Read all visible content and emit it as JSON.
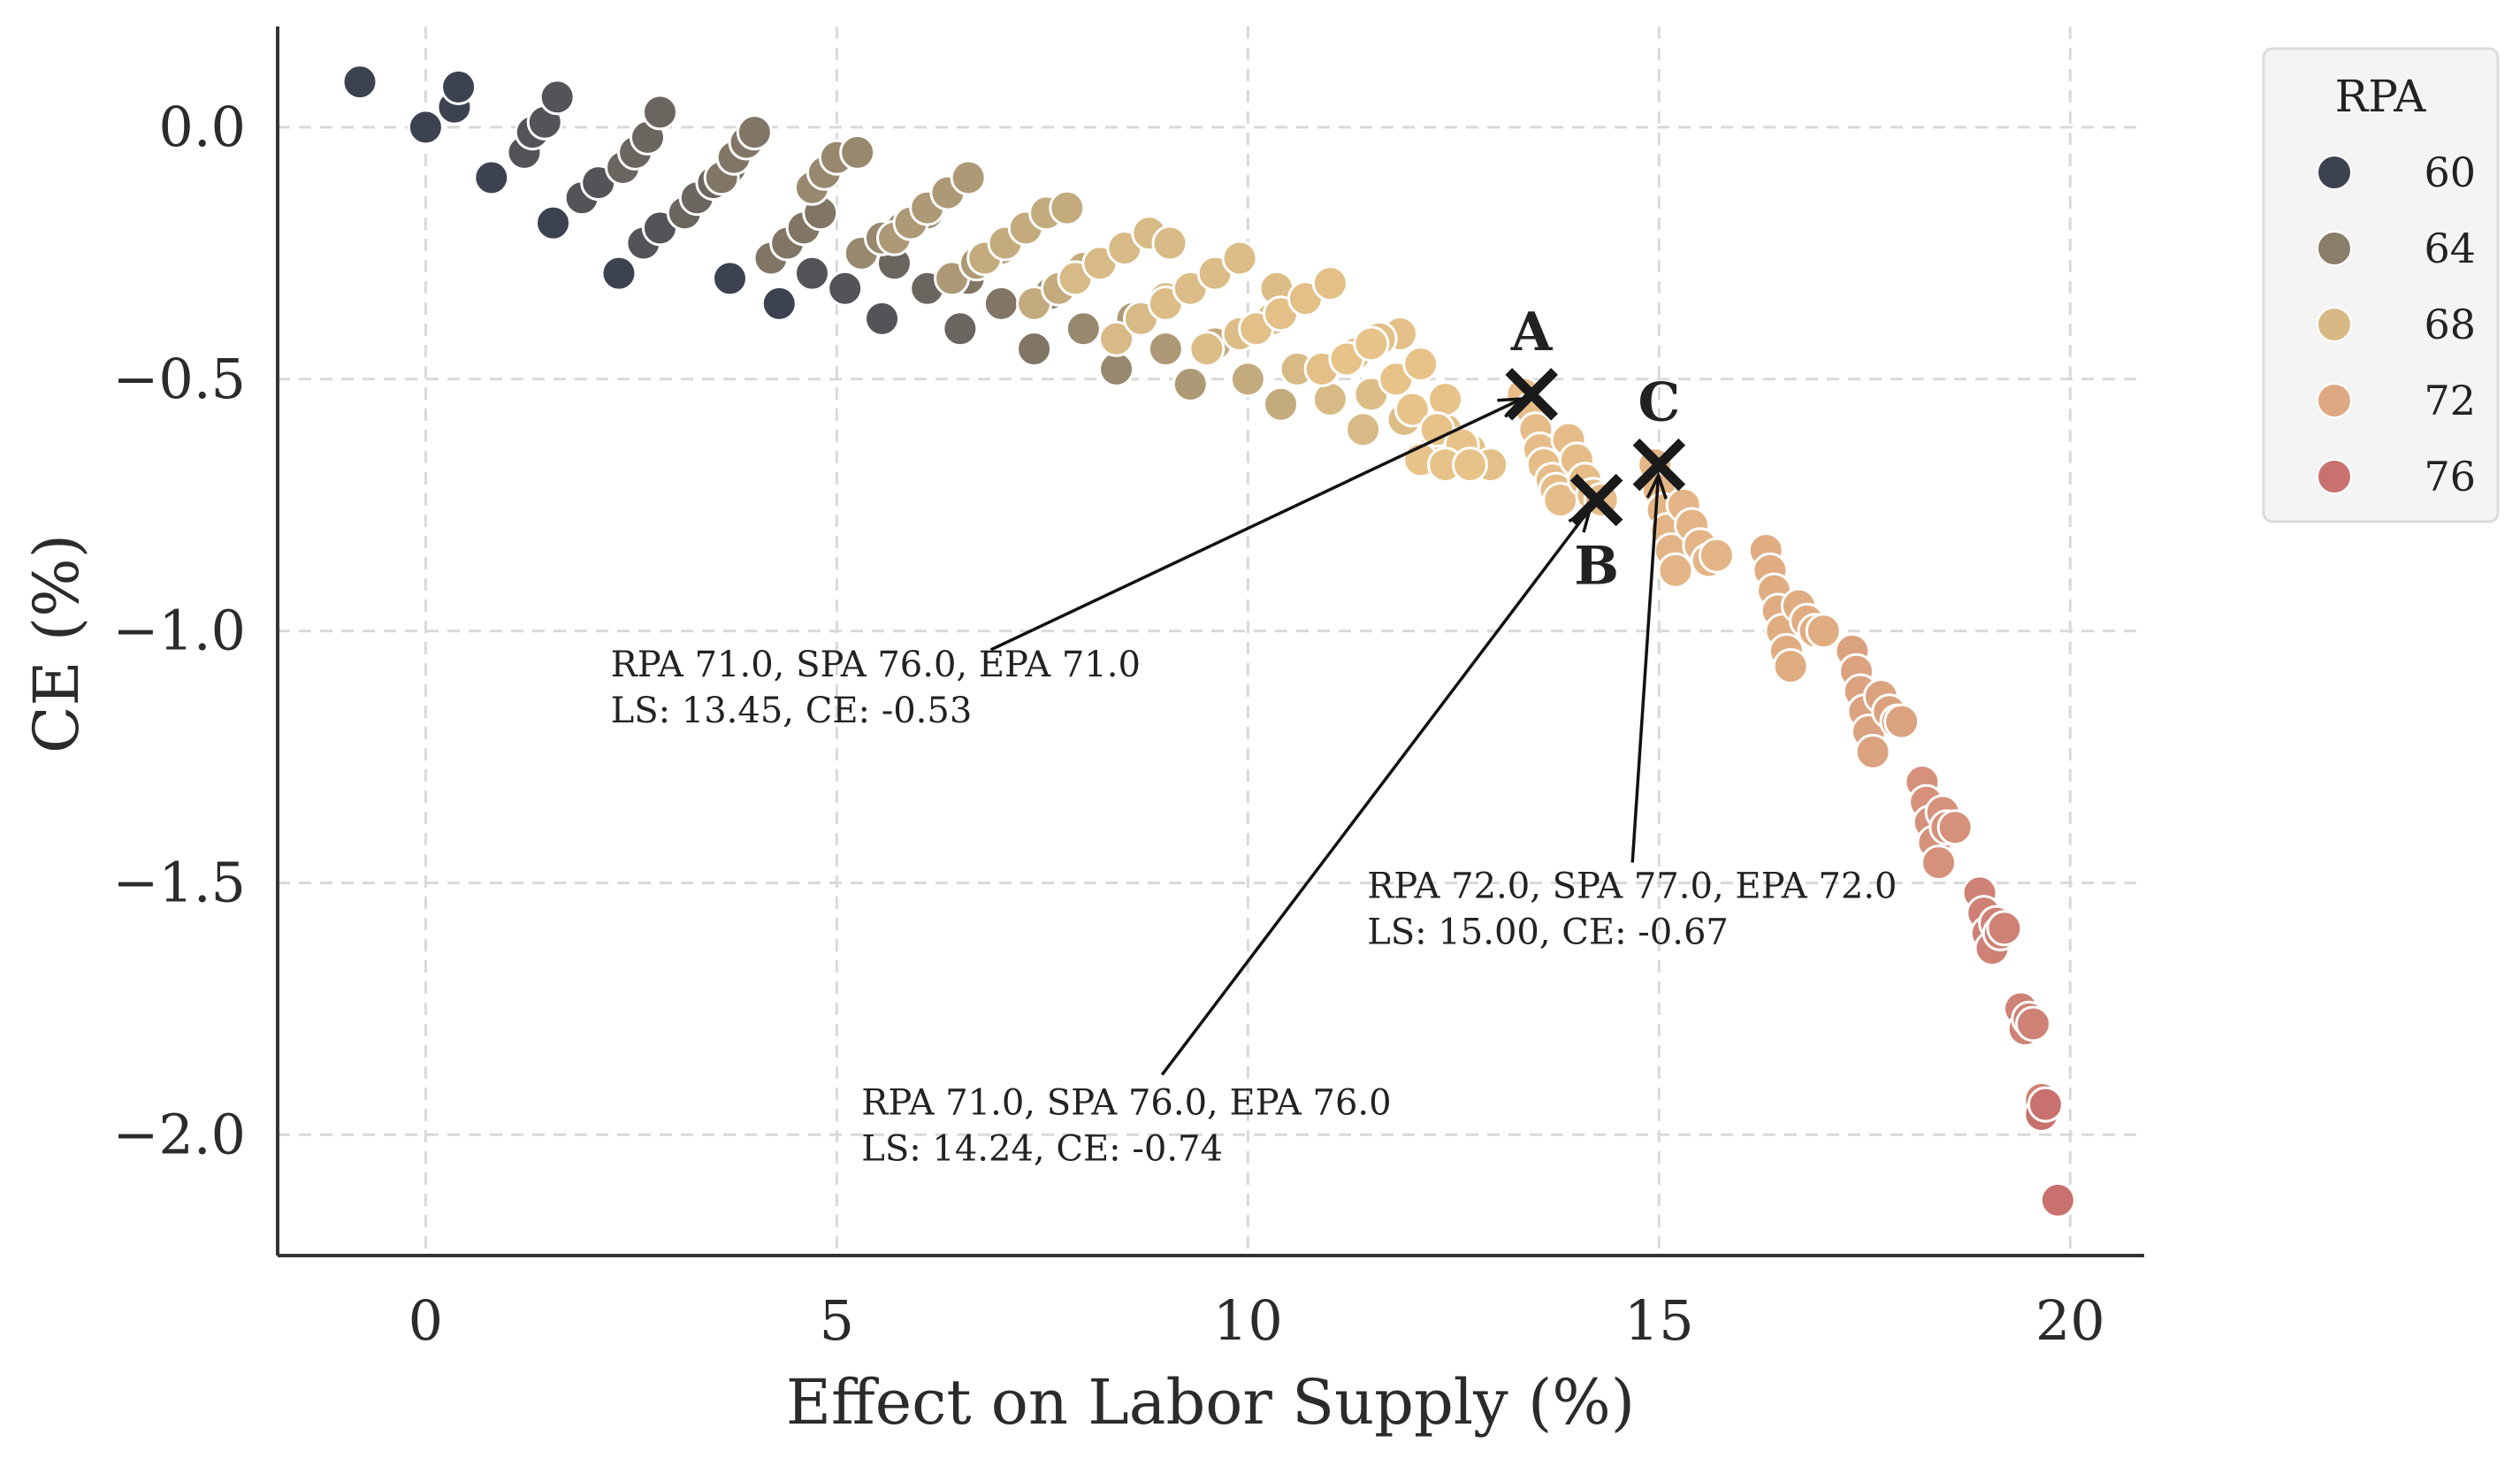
{
  "chart_data": {
    "type": "scatter",
    "xlabel": "Effect on Labor Supply (%)",
    "ylabel": "CE (%)",
    "xlim": [
      -1.8,
      20.9
    ],
    "ylim": [
      -2.24,
      0.2
    ],
    "xticks": [
      0,
      5,
      10,
      15,
      20
    ],
    "xtick_labels": [
      "0",
      "5",
      "10",
      "15",
      "20"
    ],
    "yticks": [
      0.0,
      -0.5,
      -1.0,
      -1.5,
      -2.0
    ],
    "ytick_labels": [
      "0.0",
      "−0.5",
      "−1.0",
      "−1.5",
      "−2.0"
    ],
    "grid": true,
    "legend": {
      "title": "RPA",
      "placement": "upper-right-outside",
      "entries": [
        {
          "label": "60",
          "color": "#3d4251"
        },
        {
          "label": "64",
          "color": "#8a7d69"
        },
        {
          "label": "68",
          "color": "#d6b985"
        },
        {
          "label": "72",
          "color": "#dea882"
        },
        {
          "label": "76",
          "color": "#c8716f"
        }
      ]
    },
    "colors": {
      "rpa_min": 60,
      "rpa_max": 77,
      "scale": [
        "#3d4251",
        "#8a7d69",
        "#d6b985",
        "#e8c48a",
        "#dea882",
        "#c8716f"
      ]
    },
    "series": [
      {
        "rpa": 60,
        "x": [
          -0.8,
          0.0,
          0.35,
          0.4,
          0.8,
          1.55,
          2.35,
          3.7,
          4.3
        ],
        "y": [
          0.09,
          0.0,
          0.04,
          0.08,
          -0.1,
          -0.19,
          -0.29,
          -0.3,
          -0.35
        ]
      },
      {
        "rpa": 61,
        "x": [
          1.2,
          1.3,
          1.45,
          1.6,
          1.9,
          2.1,
          2.65,
          2.85,
          4.7,
          5.1,
          5.55
        ],
        "y": [
          -0.05,
          -0.01,
          0.01,
          0.06,
          -0.14,
          -0.11,
          -0.23,
          -0.2,
          -0.29,
          -0.32,
          -0.38
        ]
      },
      {
        "rpa": 62,
        "x": [
          2.4,
          2.55,
          2.7,
          2.85,
          3.15,
          3.3,
          3.5,
          3.7,
          5.7,
          6.1,
          6.5
        ],
        "y": [
          -0.08,
          -0.05,
          -0.02,
          0.03,
          -0.17,
          -0.14,
          -0.11,
          -0.08,
          -0.27,
          -0.32,
          -0.4
        ]
      },
      {
        "rpa": 63,
        "x": [
          3.6,
          3.75,
          3.9,
          4.0,
          4.2,
          4.4,
          4.6,
          4.8,
          6.6,
          7.0,
          7.4
        ],
        "y": [
          -0.1,
          -0.06,
          -0.03,
          -0.01,
          -0.26,
          -0.23,
          -0.2,
          -0.17,
          -0.3,
          -0.35,
          -0.44
        ]
      },
      {
        "rpa": 64,
        "x": [
          4.7,
          4.85,
          5.0,
          5.25,
          5.3,
          5.55,
          5.8,
          6.1,
          7.6,
          8.0,
          8.4
        ],
        "y": [
          -0.12,
          -0.09,
          -0.06,
          -0.05,
          -0.25,
          -0.22,
          -0.2,
          -0.17,
          -0.33,
          -0.4,
          -0.48
        ]
      },
      {
        "rpa": 65,
        "x": [
          5.7,
          5.9,
          6.1,
          6.35,
          6.6,
          6.4,
          6.7,
          7.0,
          8.6,
          9.0,
          9.3
        ],
        "y": [
          -0.22,
          -0.19,
          -0.16,
          -0.13,
          -0.1,
          -0.3,
          -0.27,
          -0.24,
          -0.38,
          -0.44,
          -0.51
        ]
      },
      {
        "rpa": 66,
        "x": [
          6.8,
          7.05,
          7.3,
          7.55,
          7.8,
          7.4,
          7.7,
          8.0,
          9.6,
          10.0,
          10.4
        ],
        "y": [
          -0.26,
          -0.23,
          -0.2,
          -0.17,
          -0.16,
          -0.35,
          -0.32,
          -0.28,
          -0.43,
          -0.5,
          -0.55
        ]
      },
      {
        "rpa": 67,
        "x": [
          7.9,
          8.2,
          8.5,
          8.8,
          9.05,
          8.4,
          8.7,
          9.0,
          10.6,
          11.0,
          11.4
        ],
        "y": [
          -0.3,
          -0.27,
          -0.24,
          -0.21,
          -0.23,
          -0.42,
          -0.38,
          -0.34,
          -0.48,
          -0.54,
          -0.6
        ]
      },
      {
        "rpa": 68,
        "x": [
          9.0,
          9.3,
          9.6,
          9.9,
          10.35,
          9.5,
          9.9,
          10.3,
          11.5,
          11.9,
          12.3
        ],
        "y": [
          -0.35,
          -0.32,
          -0.29,
          -0.26,
          -0.32,
          -0.44,
          -0.41,
          -0.38,
          -0.53,
          -0.58,
          -0.63
        ]
      },
      {
        "rpa": 69,
        "x": [
          10.1,
          10.4,
          10.7,
          11.0,
          11.85,
          10.9,
          11.3,
          11.6,
          12.4,
          12.7,
          12.95
        ],
        "y": [
          -0.4,
          -0.37,
          -0.34,
          -0.31,
          -0.41,
          -0.48,
          -0.45,
          -0.42,
          -0.6,
          -0.64,
          -0.67
        ]
      },
      {
        "rpa": 70,
        "x": [
          11.2,
          11.5,
          11.8,
          12.1,
          12.4,
          12.0,
          12.3,
          12.6,
          12.1,
          12.4,
          12.7
        ],
        "y": [
          -0.46,
          -0.43,
          -0.5,
          -0.47,
          -0.54,
          -0.56,
          -0.6,
          -0.63,
          -0.66,
          -0.67,
          -0.67
        ]
      },
      {
        "rpa": 71,
        "x": [
          13.35,
          13.45,
          13.5,
          13.55,
          13.6,
          13.7,
          13.75,
          13.8,
          13.9,
          14.0,
          14.1,
          14.2,
          14.3
        ],
        "y": [
          -0.53,
          -0.56,
          -0.6,
          -0.64,
          -0.67,
          -0.7,
          -0.72,
          -0.74,
          -0.62,
          -0.66,
          -0.7,
          -0.73,
          -0.74
        ]
      },
      {
        "rpa": 72,
        "x": [
          14.95,
          15.0,
          15.05,
          15.1,
          15.15,
          15.2,
          15.3,
          15.4,
          15.5,
          15.6,
          15.7
        ],
        "y": [
          -0.67,
          -0.72,
          -0.76,
          -0.8,
          -0.84,
          -0.88,
          -0.75,
          -0.79,
          -0.83,
          -0.86,
          -0.85
        ]
      },
      {
        "rpa": 73,
        "x": [
          16.3,
          16.35,
          16.4,
          16.45,
          16.5,
          16.55,
          16.6,
          16.7,
          16.8,
          16.9,
          17.0
        ],
        "y": [
          -0.84,
          -0.88,
          -0.92,
          -0.96,
          -1.0,
          -1.04,
          -1.07,
          -0.95,
          -0.98,
          -1.0,
          -1.0
        ]
      },
      {
        "rpa": 74,
        "x": [
          17.35,
          17.4,
          17.45,
          17.5,
          17.55,
          17.6,
          17.7,
          17.8,
          17.9,
          17.95
        ],
        "y": [
          -1.04,
          -1.08,
          -1.12,
          -1.16,
          -1.2,
          -1.24,
          -1.13,
          -1.16,
          -1.18,
          -1.18
        ]
      },
      {
        "rpa": 75,
        "x": [
          18.2,
          18.25,
          18.3,
          18.35,
          18.4,
          18.45,
          18.5,
          18.6
        ],
        "y": [
          -1.3,
          -1.34,
          -1.38,
          -1.42,
          -1.46,
          -1.36,
          -1.39,
          -1.39
        ]
      },
      {
        "rpa": 76,
        "x": [
          18.9,
          18.95,
          19.0,
          19.05,
          19.1,
          19.15,
          19.2,
          19.4,
          19.45,
          19.5,
          19.55,
          19.65,
          19.7
        ],
        "y": [
          -1.52,
          -1.56,
          -1.6,
          -1.63,
          -1.58,
          -1.6,
          -1.59,
          -1.75,
          -1.79,
          -1.77,
          -1.78,
          -1.93,
          -1.95
        ]
      },
      {
        "rpa": 77,
        "x": [
          19.65,
          19.7,
          19.85
        ],
        "y": [
          -1.96,
          -1.94,
          -2.13
        ]
      }
    ],
    "highlights": [
      {
        "label": "A",
        "x": 13.45,
        "y": -0.53,
        "label_pos": "above",
        "text": [
          "RPA 71.0, SPA 76.0, EPA 71.0",
          "LS: 13.45, CE: -0.53"
        ],
        "text_at": [
          2.25,
          -1.09
        ]
      },
      {
        "label": "B",
        "x": 14.24,
        "y": -0.74,
        "label_pos": "below",
        "text": [
          "RPA 71.0, SPA 76.0, EPA 76.0",
          "LS: 14.24, CE: -0.74"
        ],
        "text_at": [
          5.3,
          -1.96
        ]
      },
      {
        "label": "C",
        "x": 15.0,
        "y": -0.67,
        "label_pos": "above",
        "text": [
          "RPA 72.0, SPA 77.0, EPA 72.0",
          "LS: 15.00, CE: -0.67"
        ],
        "text_at": [
          11.45,
          -1.53
        ]
      }
    ]
  }
}
